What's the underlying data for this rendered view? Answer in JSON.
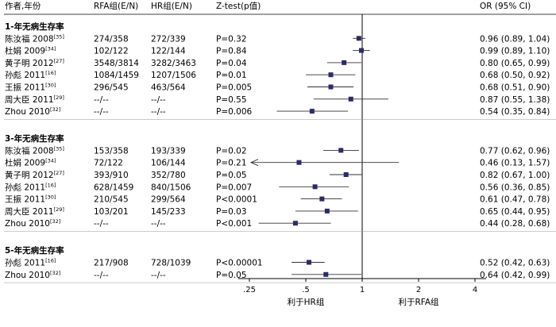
{
  "chart_data": {
    "type": "forest",
    "headers": {
      "study": "作者,年份",
      "rfa": "RFA组(E/N)",
      "hr": "HR组(E/N)",
      "ztest": "Z-test(p值)",
      "or": "OR (95% CI)"
    },
    "x_axis": {
      "scale": "log",
      "range": [
        0.2,
        4
      ],
      "ticks": [
        {
          "value": 0.25,
          "label": ".25"
        },
        {
          "value": 0.5,
          "label": ".5"
        },
        {
          "value": 1,
          "label": "1"
        },
        {
          "value": 2,
          "label": "2"
        },
        {
          "value": 4,
          "label": "4"
        }
      ],
      "reference_line": 1,
      "favors_left": "利于HR组",
      "favors_right": "利于RFA组"
    },
    "groups": [
      {
        "title": "1-年无病生存率",
        "rows": [
          {
            "study": "陈汝福 2008",
            "ref": "[35]",
            "rfa": "274/358",
            "hr": "272/339",
            "p": "P=0.32",
            "or_text": "0.96 (0.89, 1.04)",
            "or": 0.96,
            "lo": 0.89,
            "hi": 1.04
          },
          {
            "study": "杜娟 2009",
            "ref": "[34]",
            "rfa": "102/122",
            "hr": "122/144",
            "p": "P=0.84",
            "or_text": "0.99 (0.89, 1.10)",
            "or": 0.99,
            "lo": 0.89,
            "hi": 1.1
          },
          {
            "study": "黄子明 2012",
            "ref": "[27]",
            "rfa": "3548/3814",
            "hr": "3282/3463",
            "p": "P=0.04",
            "or_text": "0.80 (0.65, 0.99)",
            "or": 0.8,
            "lo": 0.65,
            "hi": 0.99
          },
          {
            "study": "孙彪 2011",
            "ref": "[16]",
            "rfa": "1084/1459",
            "hr": "1207/1506",
            "p": "P=0.01",
            "or_text": "0.68 (0.50, 0.92)",
            "or": 0.68,
            "lo": 0.5,
            "hi": 0.92
          },
          {
            "study": "王振 2011",
            "ref": "[30]",
            "rfa": "296/545",
            "hr": "463/564",
            "p": "P=0.005",
            "or_text": "0.68 (0.51, 0.90)",
            "or": 0.68,
            "lo": 0.51,
            "hi": 0.9
          },
          {
            "study": "周大臣 2011",
            "ref": "[29]",
            "rfa": "--/--",
            "hr": "--/--",
            "p": "P=0.55",
            "or_text": "0.87 (0.55, 1.38)",
            "or": 0.87,
            "lo": 0.55,
            "hi": 1.38
          },
          {
            "study": "Zhou 2010",
            "ref": "[32]",
            "rfa": "--/--",
            "hr": "--/--",
            "p": "P=0.006",
            "or_text": "0.54 (0.35, 0.84)",
            "or": 0.54,
            "lo": 0.35,
            "hi": 0.84
          }
        ]
      },
      {
        "title": "3-年无病生存率",
        "rows": [
          {
            "study": "陈汝福 2008",
            "ref": "[35]",
            "rfa": "153/358",
            "hr": "193/339",
            "p": "P=0.02",
            "or_text": "0.77 (0.62, 0.96)",
            "or": 0.77,
            "lo": 0.62,
            "hi": 0.96
          },
          {
            "study": "杜娟 2009",
            "ref": "[34]",
            "rfa": "72/122",
            "hr": "106/144",
            "p": "P=0.21",
            "or_text": "0.46 (0.13, 1.57)",
            "or": 0.46,
            "lo": 0.13,
            "hi": 1.57
          },
          {
            "study": "黄子明 2012",
            "ref": "[27]",
            "rfa": "393/910",
            "hr": "352/780",
            "p": "P=0.05",
            "or_text": "0.82 (0.67, 1.00)",
            "or": 0.82,
            "lo": 0.67,
            "hi": 1.0
          },
          {
            "study": "孙彪 2011",
            "ref": "[16]",
            "rfa": "628/1459",
            "hr": "840/1506",
            "p": "P=0.007",
            "or_text": "0.56 (0.36, 0.85)",
            "or": 0.56,
            "lo": 0.36,
            "hi": 0.85
          },
          {
            "study": "王振 2011",
            "ref": "[30]",
            "rfa": "210/545",
            "hr": "299/564",
            "p": "P<0.0001",
            "or_text": "0.61 (0.47, 0.78)",
            "or": 0.61,
            "lo": 0.47,
            "hi": 0.78
          },
          {
            "study": "周大臣 2011",
            "ref": "[29]",
            "rfa": "103/201",
            "hr": "145/233",
            "p": "P=0.03",
            "or_text": "0.65 (0.44, 0.95)",
            "or": 0.65,
            "lo": 0.44,
            "hi": 0.95
          },
          {
            "study": "Zhou 2010",
            "ref": "[32]",
            "rfa": "--/--",
            "hr": "--/--",
            "p": "P<0.001",
            "or_text": "0.44 (0.28, 0.68)",
            "or": 0.44,
            "lo": 0.28,
            "hi": 0.68
          }
        ]
      },
      {
        "title": "5-年无病生存率",
        "rows": [
          {
            "study": "孙彪 2011",
            "ref": "[16]",
            "rfa": "217/908",
            "hr": "728/1039",
            "p": "P<0.00001",
            "or_text": "0.52 (0.42, 0.63)",
            "or": 0.52,
            "lo": 0.42,
            "hi": 0.63
          },
          {
            "study": "Zhou 2010",
            "ref": "[32]",
            "rfa": "--/--",
            "hr": "--/--",
            "p": "P=0.05",
            "or_text": "0.64 (0.42, 0.99)",
            "or": 0.64,
            "lo": 0.42,
            "hi": 0.99
          }
        ]
      }
    ]
  }
}
